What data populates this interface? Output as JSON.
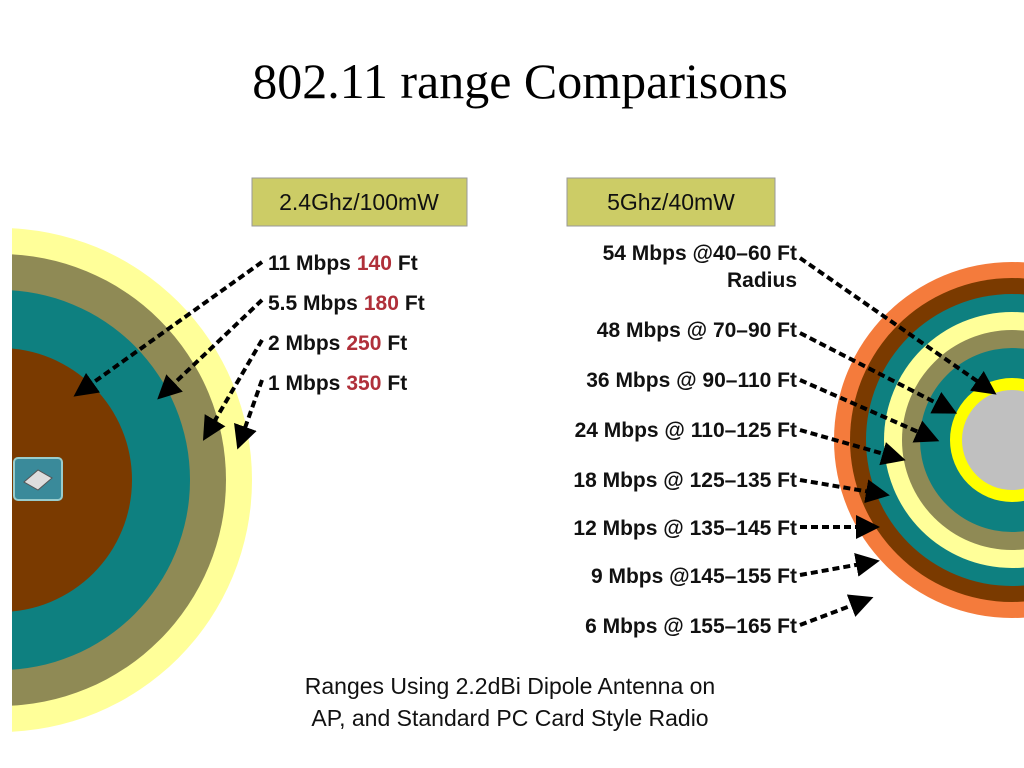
{
  "title": "802.11 range Comparisons",
  "left": {
    "header": "2.4Ghz/100mW",
    "items": [
      {
        "rate": "11 Mbps",
        "range": "140",
        "unit": "Ft"
      },
      {
        "rate": "5.5 Mbps",
        "range": "180",
        "unit": "Ft"
      },
      {
        "rate": "2 Mbps",
        "range": "250",
        "unit": "Ft"
      },
      {
        "rate": "1 Mbps",
        "range": "350",
        "unit": "Ft"
      }
    ]
  },
  "right": {
    "header": "5Ghz/40mW",
    "items": [
      {
        "lines": [
          "54 Mbps @40–60 Ft",
          "Radius"
        ]
      },
      {
        "lines": [
          "48 Mbps @ 70–90 Ft"
        ]
      },
      {
        "lines": [
          "36 Mbps @ 90–110 Ft"
        ]
      },
      {
        "lines": [
          "24 Mbps @ 110–125 Ft"
        ]
      },
      {
        "lines": [
          "18 Mbps @ 125–135 Ft"
        ]
      },
      {
        "lines": [
          "12 Mbps @ 135–145 Ft"
        ]
      },
      {
        "lines": [
          "9 Mbps @145–155 Ft"
        ]
      },
      {
        "lines": [
          "6 Mbps @ 155–165 Ft"
        ]
      }
    ]
  },
  "caption": [
    "Ranges Using 2.2dBi Dipole Antenna on",
    "AP, and Standard PC Card Style Radio"
  ]
}
